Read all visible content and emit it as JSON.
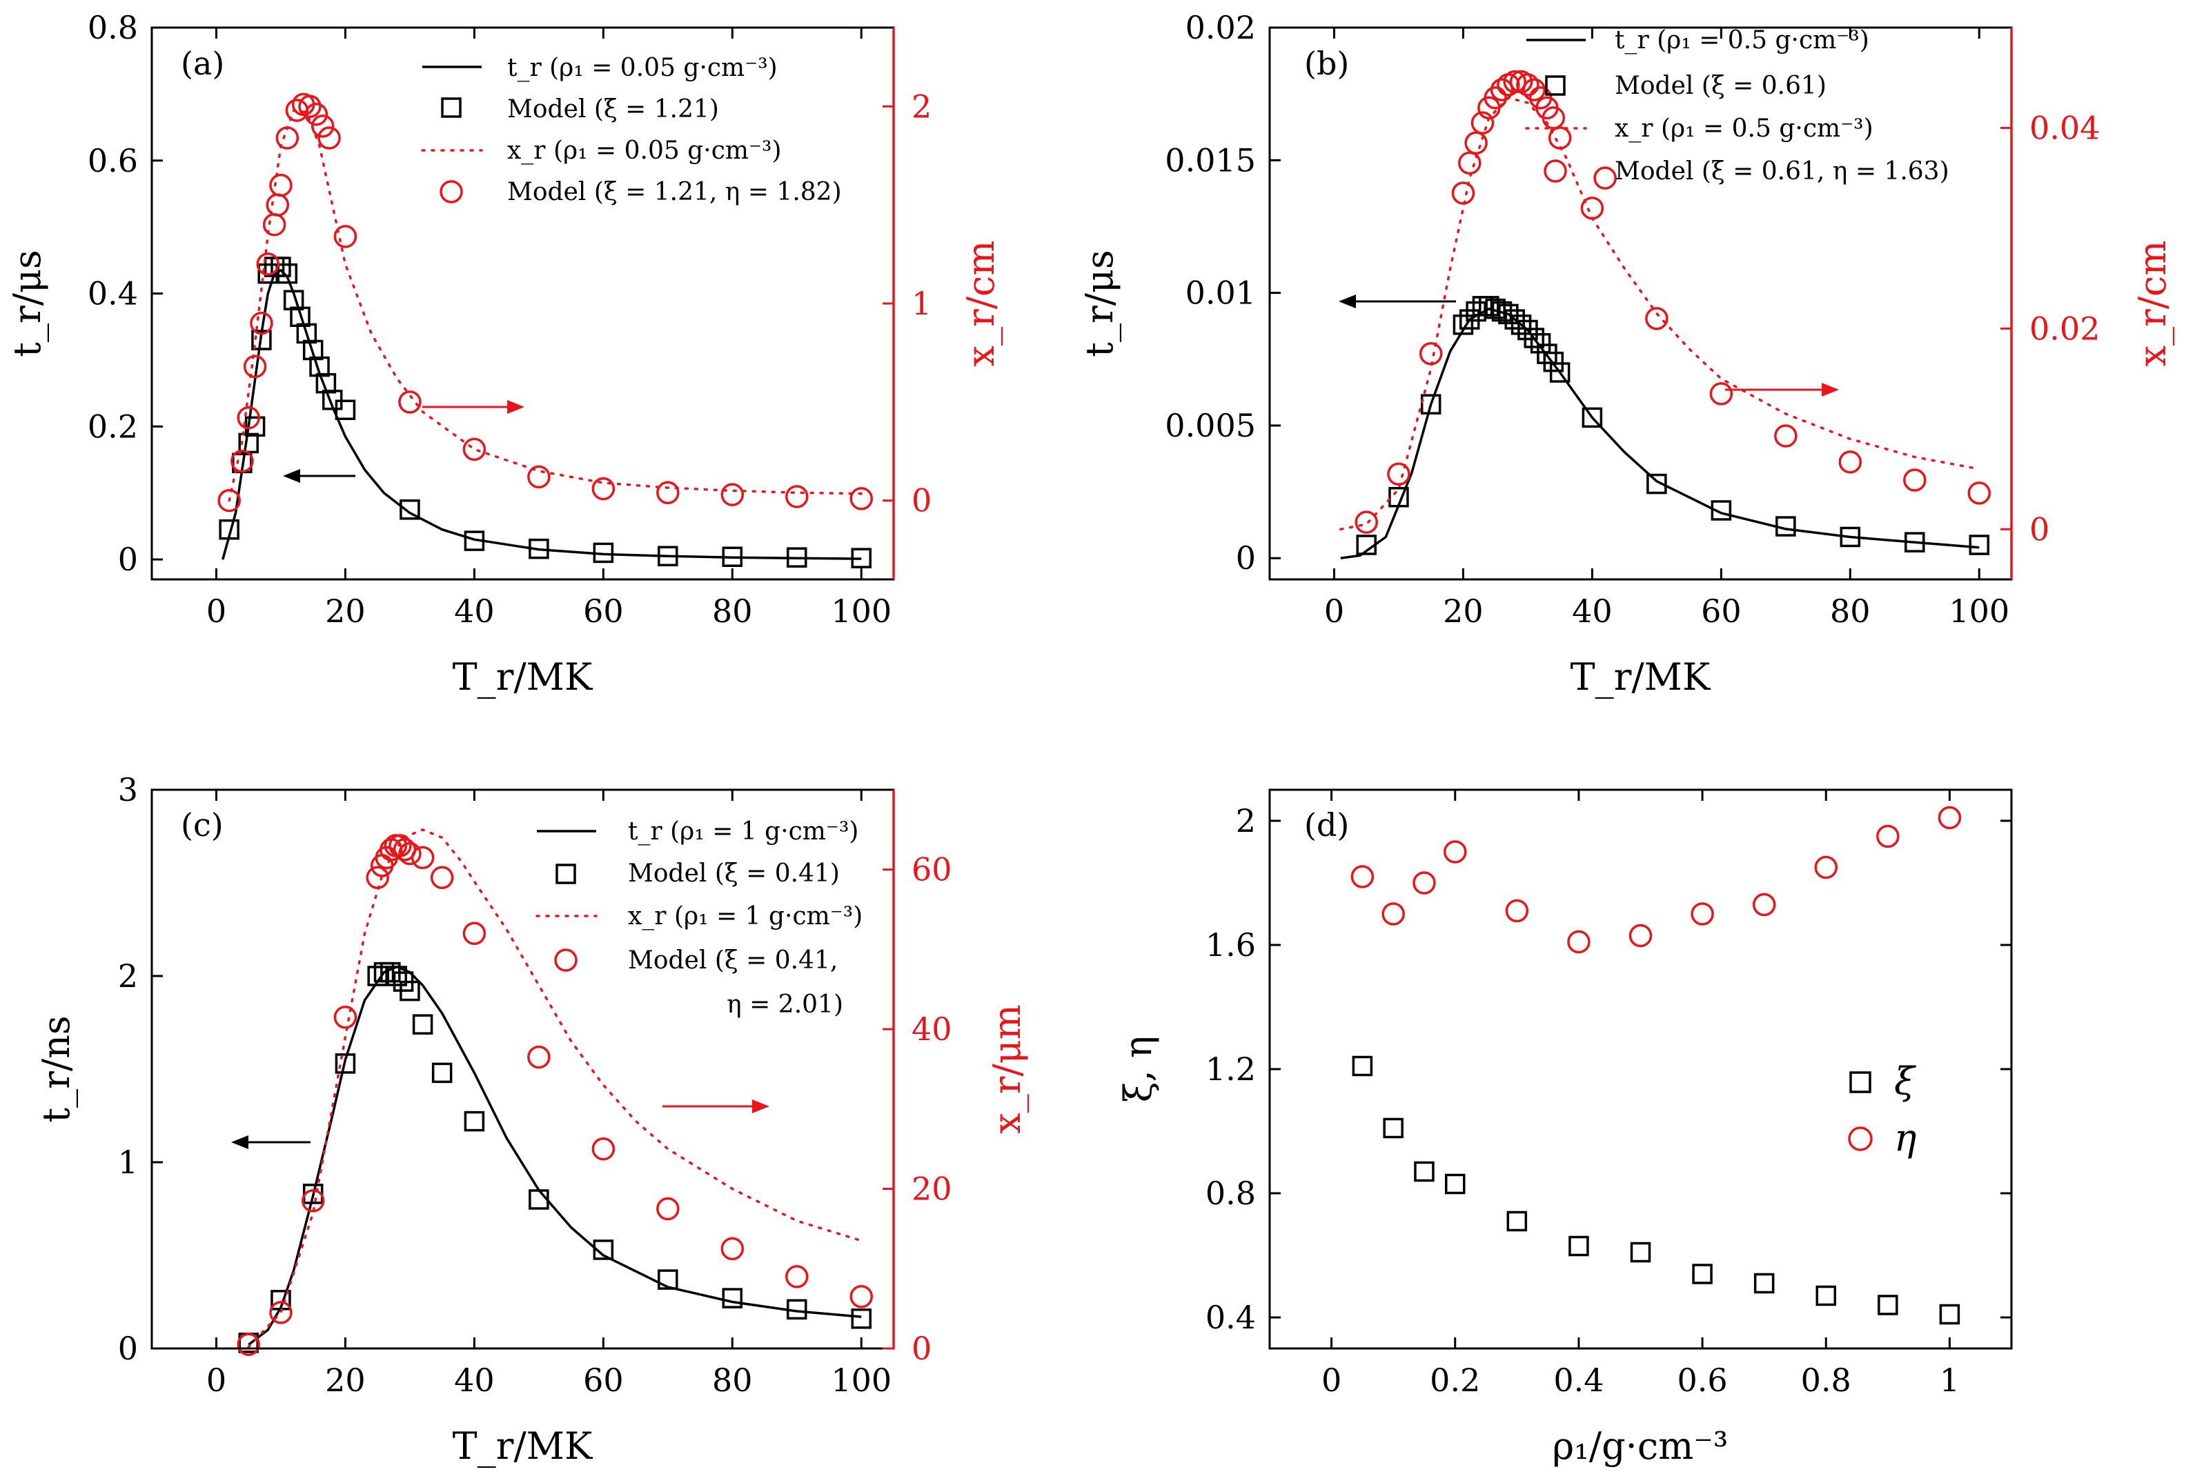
{
  "figure": {
    "panels": [
      {
        "panel_label": "(a)",
        "xlabel": "T_r/MK",
        "ylabel_left": "t_r/μs",
        "ylabel_right": "x_r/cm",
        "legend": [
          "t_r (ρ₁ = 0.05 g·cm⁻³)",
          "Model (ξ = 1.21)",
          "x_r (ρ₁ = 0.05 g·cm⁻³)",
          "Model (ξ = 1.21, η = 1.82)"
        ]
      },
      {
        "panel_label": "(b)",
        "xlabel": "T_r/MK",
        "ylabel_left": "t_r/μs",
        "ylabel_right": "x_r/cm",
        "legend": [
          "t_r (ρ₁ = 0.5 g·cm⁻³)",
          "Model (ξ = 0.61)",
          "x_r (ρ₁ = 0.5 g·cm⁻³)",
          "Model (ξ = 0.61, η = 1.63)"
        ]
      },
      {
        "panel_label": "(c)",
        "xlabel": "T_r/MK",
        "ylabel_left": "t_r/ns",
        "ylabel_right": "x_r/μm",
        "legend": [
          "t_r (ρ₁ = 1 g·cm⁻³)",
          "Model (ξ = 0.41)",
          "x_r (ρ₁ = 1 g·cm⁻³)",
          "Model (ξ = 0.41,",
          "η = 2.01)"
        ]
      },
      {
        "panel_label": "(d)",
        "xlabel": "ρ₁/g·cm⁻³",
        "ylabel_left": "ξ, η",
        "legend": [
          "ξ",
          "η"
        ]
      }
    ]
  },
  "chart_data": [
    {
      "type": "line",
      "title": "",
      "xlim": [
        -10,
        105
      ],
      "xticks": [
        0,
        20,
        40,
        60,
        80,
        100
      ],
      "ylim_left": [
        -0.03,
        0.8
      ],
      "yticks_left": [
        0,
        0.2,
        0.4,
        0.6,
        0.8
      ],
      "ylim_right": [
        -0.4,
        2.4
      ],
      "yticks_right": [
        0,
        1,
        2
      ],
      "colors": {
        "left": "#000000",
        "right": "#e8161b"
      },
      "series": [
        {
          "name": "t_r (ρ₁ = 0.05 g·cm⁻³)",
          "axis": "left",
          "style": "solid",
          "x": [
            1,
            3,
            5,
            7,
            8,
            9,
            10,
            11,
            12,
            14,
            16,
            18,
            20,
            23,
            26,
            30,
            35,
            40,
            50,
            60,
            70,
            80,
            90,
            100
          ],
          "y": [
            0.0,
            0.07,
            0.2,
            0.34,
            0.4,
            0.43,
            0.435,
            0.425,
            0.4,
            0.34,
            0.28,
            0.23,
            0.185,
            0.135,
            0.1,
            0.07,
            0.045,
            0.03,
            0.015,
            0.008,
            0.005,
            0.003,
            0.002,
            0.001
          ]
        },
        {
          "name": "Model (ξ = 1.21)",
          "axis": "left",
          "style": "square",
          "x": [
            2,
            4,
            5,
            6,
            7,
            8,
            9,
            10,
            11,
            12,
            13,
            14,
            15,
            16,
            17,
            18,
            20,
            30,
            40,
            50,
            60,
            70,
            80,
            90,
            100
          ],
          "y": [
            0.045,
            0.145,
            0.175,
            0.2,
            0.33,
            0.43,
            0.44,
            0.44,
            0.43,
            0.39,
            0.365,
            0.34,
            0.315,
            0.29,
            0.265,
            0.24,
            0.225,
            0.075,
            0.028,
            0.016,
            0.01,
            0.005,
            0.004,
            0.003,
            0.002
          ]
        },
        {
          "name": "x_r (ρ₁ = 0.05 g·cm⁻³)",
          "axis": "right",
          "style": "dotted",
          "x": [
            2,
            4,
            6,
            8,
            10,
            12,
            14,
            16,
            18,
            20,
            24,
            28,
            32,
            40,
            50,
            60,
            70,
            80,
            90,
            100
          ],
          "y": [
            0.0,
            0.3,
            0.8,
            1.35,
            1.8,
            1.98,
            1.97,
            1.8,
            1.5,
            1.2,
            0.85,
            0.62,
            0.45,
            0.26,
            0.15,
            0.09,
            0.065,
            0.05,
            0.04,
            0.035
          ]
        },
        {
          "name": "Model (ξ = 1.21, η = 1.82)",
          "axis": "right",
          "style": "circle",
          "x": [
            2,
            4,
            5,
            6,
            7,
            8,
            9,
            9.5,
            10,
            11,
            12.5,
            13.5,
            14.5,
            15.5,
            16.5,
            17.5,
            20,
            30,
            40,
            50,
            60,
            70,
            80,
            90,
            100
          ],
          "y": [
            0.0,
            0.2,
            0.42,
            0.68,
            0.9,
            1.2,
            1.4,
            1.5,
            1.6,
            1.84,
            1.98,
            2.01,
            2.0,
            1.96,
            1.9,
            1.84,
            1.34,
            0.5,
            0.26,
            0.12,
            0.06,
            0.04,
            0.03,
            0.02,
            0.01
          ]
        }
      ]
    },
    {
      "type": "line",
      "title": "",
      "xlim": [
        -10,
        105
      ],
      "xticks": [
        0,
        20,
        40,
        60,
        80,
        100
      ],
      "ylim_left": [
        -0.0008,
        0.02
      ],
      "yticks_left": [
        0,
        0.005,
        0.01,
        0.015,
        0.02
      ],
      "ylim_right": [
        -0.005,
        0.05
      ],
      "yticks_right": [
        0,
        0.02,
        0.04
      ],
      "colors": {
        "left": "#000000",
        "right": "#e8161b"
      },
      "series": [
        {
          "name": "t_r (ρ₁ = 0.5 g·cm⁻³)",
          "axis": "left",
          "style": "solid",
          "x": [
            1,
            4,
            8,
            12,
            15,
            18,
            21,
            24,
            27,
            30,
            35,
            40,
            45,
            50,
            60,
            70,
            80,
            90,
            100
          ],
          "y": [
            0.0,
            0.0001,
            0.0008,
            0.0032,
            0.0058,
            0.0078,
            0.009,
            0.0094,
            0.0092,
            0.0086,
            0.007,
            0.0053,
            0.004,
            0.0029,
            0.0017,
            0.0011,
            0.0008,
            0.0006,
            0.0004
          ]
        },
        {
          "name": "Model (ξ = 0.61)",
          "axis": "left",
          "style": "square",
          "x": [
            5,
            10,
            15,
            20,
            21,
            22,
            23,
            24,
            25,
            26,
            27,
            28,
            29,
            30,
            31,
            32,
            33,
            34,
            35,
            40,
            50,
            60,
            70,
            80,
            90,
            100
          ],
          "y": [
            0.0005,
            0.0023,
            0.0058,
            0.0088,
            0.009,
            0.0093,
            0.0095,
            0.0095,
            0.0094,
            0.0093,
            0.0092,
            0.009,
            0.0088,
            0.0086,
            0.0083,
            0.0081,
            0.0077,
            0.0074,
            0.007,
            0.0053,
            0.0028,
            0.0018,
            0.0012,
            0.0008,
            0.0006,
            0.0005
          ]
        },
        {
          "name": "x_r (ρ₁ = 0.5 g·cm⁻³)",
          "axis": "right",
          "style": "dotted",
          "x": [
            1,
            5,
            10,
            15,
            18,
            21,
            24,
            27,
            30,
            33,
            36,
            40,
            45,
            50,
            55,
            60,
            70,
            80,
            90,
            100
          ],
          "y": [
            0.0,
            0.0005,
            0.004,
            0.016,
            0.026,
            0.035,
            0.041,
            0.043,
            0.0425,
            0.0405,
            0.037,
            0.031,
            0.026,
            0.0215,
            0.018,
            0.015,
            0.0115,
            0.009,
            0.0072,
            0.006
          ]
        },
        {
          "name": "Model (ξ = 0.61, η = 1.63)",
          "axis": "right",
          "style": "circle",
          "x": [
            5,
            10,
            15,
            20,
            21,
            22,
            23,
            24,
            25,
            26,
            27,
            28,
            29,
            30,
            31,
            32,
            33,
            34,
            35,
            40,
            42,
            50,
            60,
            70,
            80,
            90,
            100
          ],
          "y": [
            0.0007,
            0.0055,
            0.0175,
            0.0335,
            0.0365,
            0.0385,
            0.0405,
            0.042,
            0.043,
            0.0438,
            0.0443,
            0.0446,
            0.0446,
            0.0443,
            0.0438,
            0.043,
            0.042,
            0.041,
            0.039,
            0.032,
            0.035,
            0.021,
            0.0135,
            0.0093,
            0.0067,
            0.0049,
            0.0036
          ]
        }
      ]
    },
    {
      "type": "line",
      "title": "",
      "xlim": [
        -10,
        105
      ],
      "xticks": [
        0,
        20,
        40,
        60,
        80,
        100
      ],
      "ylim_left": [
        0,
        3
      ],
      "yticks_left": [
        0,
        1,
        2,
        3
      ],
      "ylim_right": [
        0,
        70
      ],
      "yticks_right": [
        0,
        20,
        40,
        60
      ],
      "colors": {
        "left": "#000000",
        "right": "#e8161b"
      },
      "series": [
        {
          "name": "t_r (ρ₁ = 1 g·cm⁻³)",
          "axis": "left",
          "style": "solid",
          "x": [
            5,
            8,
            10,
            12,
            15,
            18,
            20,
            23,
            26,
            28,
            30,
            32,
            35,
            40,
            45,
            50,
            55,
            60,
            70,
            80,
            90,
            100
          ],
          "y": [
            0.02,
            0.1,
            0.22,
            0.42,
            0.82,
            1.25,
            1.55,
            1.87,
            2.02,
            2.05,
            2.02,
            1.95,
            1.8,
            1.48,
            1.13,
            0.85,
            0.65,
            0.5,
            0.33,
            0.25,
            0.2,
            0.17
          ]
        },
        {
          "name": "Model (ξ = 0.41)",
          "axis": "left",
          "style": "square",
          "x": [
            5,
            10,
            15,
            20,
            25,
            26,
            27,
            28,
            29,
            30,
            32,
            35,
            40,
            50,
            60,
            70,
            80,
            90,
            100
          ],
          "y": [
            0.03,
            0.26,
            0.83,
            1.53,
            2.0,
            2.02,
            2.02,
            2.0,
            1.97,
            1.92,
            1.74,
            1.48,
            1.22,
            0.8,
            0.53,
            0.37,
            0.27,
            0.21,
            0.16
          ]
        },
        {
          "name": "x_r (ρ₁ = 1 g·cm⁻³)",
          "axis": "right",
          "style": "dotted",
          "x": [
            5,
            10,
            15,
            20,
            23,
            26,
            29,
            32,
            35,
            38,
            40,
            45,
            50,
            55,
            60,
            65,
            70,
            80,
            90,
            100
          ],
          "y": [
            0.2,
            4.5,
            17,
            39,
            52,
            60,
            64,
            65,
            64,
            61,
            58.5,
            52.5,
            45.5,
            38.5,
            33,
            28.5,
            25,
            20,
            16,
            13.5
          ]
        },
        {
          "name": "Model (ξ = 0.41, η = 2.01)",
          "axis": "right",
          "style": "circle",
          "x": [
            5,
            10,
            15,
            20,
            25,
            25.7,
            26.4,
            27.1,
            27.8,
            28.5,
            29.2,
            30,
            32,
            35,
            40,
            50,
            60,
            70,
            80,
            90,
            100
          ],
          "y": [
            0.5,
            4.5,
            18.5,
            41.5,
            59,
            60.5,
            61.5,
            62.5,
            63,
            63,
            62.5,
            62,
            61.5,
            59,
            52,
            36.5,
            25,
            17.5,
            12.5,
            9,
            6.5
          ]
        }
      ]
    },
    {
      "type": "scatter",
      "title": "",
      "xlim": [
        -0.1,
        1.1
      ],
      "xticks": [
        0,
        0.2,
        0.4,
        0.6,
        0.8,
        1.0
      ],
      "ylim": [
        0.3,
        2.1
      ],
      "yticks": [
        0.4,
        0.8,
        1.2,
        1.6,
        2.0
      ],
      "colors": {
        "xi": "#000000",
        "eta": "#e8161b"
      },
      "series": [
        {
          "name": "ξ",
          "style": "square",
          "x": [
            0.05,
            0.1,
            0.15,
            0.2,
            0.3,
            0.4,
            0.5,
            0.6,
            0.7,
            0.8,
            0.9,
            1.0
          ],
          "y": [
            1.21,
            1.01,
            0.87,
            0.83,
            0.71,
            0.63,
            0.61,
            0.54,
            0.51,
            0.47,
            0.44,
            0.41
          ]
        },
        {
          "name": "η",
          "style": "circle",
          "x": [
            0.05,
            0.1,
            0.15,
            0.2,
            0.3,
            0.4,
            0.5,
            0.6,
            0.7,
            0.8,
            0.9,
            1.0
          ],
          "y": [
            1.82,
            1.7,
            1.8,
            1.9,
            1.71,
            1.61,
            1.63,
            1.7,
            1.73,
            1.85,
            1.95,
            2.01
          ]
        }
      ]
    }
  ]
}
